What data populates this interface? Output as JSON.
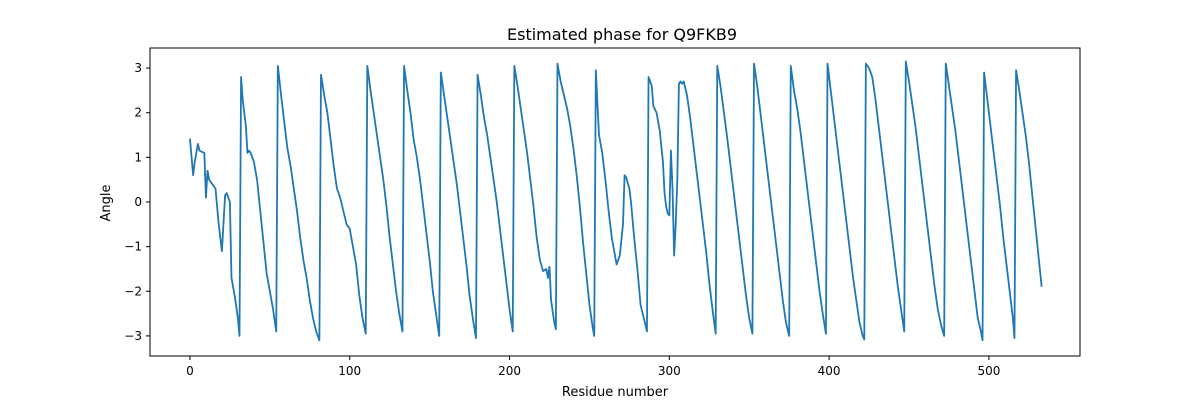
{
  "chart_data": {
    "type": "line",
    "title": "Estimated phase for Q9FKB9",
    "xlabel": "Residue number",
    "ylabel": "Angle",
    "xlim": [
      -25,
      557
    ],
    "ylim": [
      -3.45,
      3.45
    ],
    "xticks": [
      0,
      100,
      200,
      300,
      400,
      500
    ],
    "yticks": [
      -3,
      -2,
      -1,
      0,
      1,
      2,
      3
    ],
    "grid": false,
    "legend": "none",
    "series": [
      {
        "color": "#1f77b4",
        "points": [
          [
            0,
            1.42
          ],
          [
            2,
            0.6
          ],
          [
            3,
            0.9
          ],
          [
            5,
            1.3
          ],
          [
            6,
            1.15
          ],
          [
            9,
            1.1
          ],
          [
            10,
            0.1
          ],
          [
            11,
            0.7
          ],
          [
            12,
            0.5
          ],
          [
            14,
            0.4
          ],
          [
            16,
            0.3
          ],
          [
            18,
            -0.5
          ],
          [
            20,
            -1.1
          ],
          [
            22,
            0.15
          ],
          [
            23,
            0.2
          ],
          [
            25,
            0.0
          ],
          [
            26,
            -1.7
          ],
          [
            28,
            -2.1
          ],
          [
            30,
            -2.6
          ],
          [
            31,
            -3.0
          ],
          [
            32,
            2.8
          ],
          [
            33,
            2.3
          ],
          [
            35,
            1.7
          ],
          [
            36,
            1.1
          ],
          [
            37,
            1.15
          ],
          [
            38,
            1.1
          ],
          [
            40,
            0.9
          ],
          [
            42,
            0.5
          ],
          [
            44,
            -0.2
          ],
          [
            46,
            -0.9
          ],
          [
            48,
            -1.6
          ],
          [
            50,
            -2.0
          ],
          [
            52,
            -2.4
          ],
          [
            54,
            -2.9
          ],
          [
            55,
            3.05
          ],
          [
            57,
            2.4
          ],
          [
            59,
            1.8
          ],
          [
            61,
            1.2
          ],
          [
            63,
            0.8
          ],
          [
            65,
            0.3
          ],
          [
            67,
            -0.2
          ],
          [
            69,
            -0.8
          ],
          [
            71,
            -1.3
          ],
          [
            73,
            -1.7
          ],
          [
            75,
            -2.2
          ],
          [
            77,
            -2.6
          ],
          [
            79,
            -2.9
          ],
          [
            81,
            -3.1
          ],
          [
            82,
            2.85
          ],
          [
            84,
            2.4
          ],
          [
            86,
            2.0
          ],
          [
            88,
            1.4
          ],
          [
            90,
            0.8
          ],
          [
            92,
            0.3
          ],
          [
            94,
            0.1
          ],
          [
            96,
            -0.2
          ],
          [
            98,
            -0.5
          ],
          [
            100,
            -0.6
          ],
          [
            102,
            -1.0
          ],
          [
            104,
            -1.4
          ],
          [
            106,
            -2.1
          ],
          [
            108,
            -2.6
          ],
          [
            110,
            -2.95
          ],
          [
            111,
            3.05
          ],
          [
            113,
            2.5
          ],
          [
            115,
            2.0
          ],
          [
            117,
            1.5
          ],
          [
            119,
            1.0
          ],
          [
            121,
            0.5
          ],
          [
            123,
            -0.1
          ],
          [
            125,
            -0.8
          ],
          [
            127,
            -1.4
          ],
          [
            129,
            -2.0
          ],
          [
            131,
            -2.5
          ],
          [
            133,
            -2.9
          ],
          [
            134,
            3.05
          ],
          [
            136,
            2.5
          ],
          [
            138,
            2.0
          ],
          [
            140,
            1.4
          ],
          [
            142,
            1.0
          ],
          [
            144,
            0.5
          ],
          [
            146,
            -0.1
          ],
          [
            148,
            -0.7
          ],
          [
            150,
            -1.3
          ],
          [
            152,
            -2.0
          ],
          [
            154,
            -2.5
          ],
          [
            156,
            -3.0
          ],
          [
            157,
            2.9
          ],
          [
            159,
            2.4
          ],
          [
            161,
            1.9
          ],
          [
            163,
            1.4
          ],
          [
            165,
            0.9
          ],
          [
            167,
            0.4
          ],
          [
            169,
            -0.2
          ],
          [
            171,
            -0.8
          ],
          [
            173,
            -1.4
          ],
          [
            175,
            -2.1
          ],
          [
            177,
            -2.6
          ],
          [
            179,
            -3.05
          ],
          [
            180,
            2.85
          ],
          [
            182,
            2.4
          ],
          [
            184,
            1.9
          ],
          [
            186,
            1.5
          ],
          [
            188,
            1.0
          ],
          [
            190,
            0.5
          ],
          [
            192,
            0.0
          ],
          [
            194,
            -0.6
          ],
          [
            196,
            -1.2
          ],
          [
            198,
            -1.8
          ],
          [
            200,
            -2.4
          ],
          [
            202,
            -2.9
          ],
          [
            203,
            3.05
          ],
          [
            205,
            2.6
          ],
          [
            207,
            2.1
          ],
          [
            209,
            1.6
          ],
          [
            211,
            1.1
          ],
          [
            213,
            0.5
          ],
          [
            215,
            -0.1
          ],
          [
            217,
            -0.8
          ],
          [
            219,
            -1.3
          ],
          [
            221,
            -1.55
          ],
          [
            223,
            -1.5
          ],
          [
            224,
            -1.7
          ],
          [
            225,
            -1.45
          ],
          [
            226,
            -2.2
          ],
          [
            228,
            -2.7
          ],
          [
            229,
            -2.85
          ],
          [
            230,
            3.1
          ],
          [
            232,
            2.7
          ],
          [
            234,
            2.4
          ],
          [
            236,
            2.1
          ],
          [
            238,
            1.7
          ],
          [
            240,
            1.2
          ],
          [
            242,
            0.6
          ],
          [
            244,
            -0.1
          ],
          [
            246,
            -0.9
          ],
          [
            248,
            -1.6
          ],
          [
            250,
            -2.3
          ],
          [
            252,
            -2.8
          ],
          [
            253,
            -3.0
          ],
          [
            254,
            2.95
          ],
          [
            255,
            2.2
          ],
          [
            256,
            1.5
          ],
          [
            258,
            1.1
          ],
          [
            260,
            0.5
          ],
          [
            262,
            -0.2
          ],
          [
            264,
            -0.8
          ],
          [
            266,
            -1.2
          ],
          [
            267,
            -1.4
          ],
          [
            269,
            -1.2
          ],
          [
            271,
            -0.5
          ],
          [
            272,
            0.6
          ],
          [
            273,
            0.55
          ],
          [
            275,
            0.3
          ],
          [
            276,
            0.0
          ],
          [
            278,
            -0.8
          ],
          [
            280,
            -1.5
          ],
          [
            282,
            -2.3
          ],
          [
            284,
            -2.6
          ],
          [
            286,
            -2.9
          ],
          [
            287,
            2.8
          ],
          [
            289,
            2.6
          ],
          [
            290,
            2.15
          ],
          [
            292,
            2.0
          ],
          [
            294,
            1.6
          ],
          [
            296,
            0.9
          ],
          [
            297,
            0.2
          ],
          [
            298,
            -0.1
          ],
          [
            299,
            -0.25
          ],
          [
            300,
            -0.3
          ],
          [
            301,
            1.15
          ],
          [
            302,
            0.3
          ],
          [
            303,
            -1.2
          ],
          [
            304,
            -0.5
          ],
          [
            305,
            0.5
          ],
          [
            306,
            2.65
          ],
          [
            307,
            2.7
          ],
          [
            308,
            2.65
          ],
          [
            309,
            2.7
          ],
          [
            311,
            2.4
          ],
          [
            313,
            1.9
          ],
          [
            315,
            1.3
          ],
          [
            317,
            0.7
          ],
          [
            319,
            0.1
          ],
          [
            321,
            -0.5
          ],
          [
            323,
            -1.1
          ],
          [
            325,
            -1.8
          ],
          [
            327,
            -2.4
          ],
          [
            329,
            -2.95
          ],
          [
            330,
            3.05
          ],
          [
            332,
            2.6
          ],
          [
            334,
            2.05
          ],
          [
            336,
            1.5
          ],
          [
            338,
            0.9
          ],
          [
            340,
            0.3
          ],
          [
            342,
            -0.3
          ],
          [
            344,
            -0.9
          ],
          [
            346,
            -1.5
          ],
          [
            348,
            -2.1
          ],
          [
            350,
            -2.6
          ],
          [
            352,
            -2.95
          ],
          [
            353,
            3.1
          ],
          [
            355,
            2.6
          ],
          [
            357,
            2.0
          ],
          [
            359,
            1.4
          ],
          [
            361,
            0.8
          ],
          [
            363,
            0.2
          ],
          [
            365,
            -0.4
          ],
          [
            367,
            -1.0
          ],
          [
            369,
            -1.6
          ],
          [
            371,
            -2.2
          ],
          [
            373,
            -2.7
          ],
          [
            375,
            -3.0
          ],
          [
            376,
            3.05
          ],
          [
            378,
            2.5
          ],
          [
            380,
            2.1
          ],
          [
            382,
            1.6
          ],
          [
            384,
            1.0
          ],
          [
            386,
            0.4
          ],
          [
            388,
            -0.2
          ],
          [
            390,
            -0.8
          ],
          [
            392,
            -1.4
          ],
          [
            394,
            -2.0
          ],
          [
            396,
            -2.5
          ],
          [
            398,
            -2.95
          ],
          [
            399,
            3.1
          ],
          [
            401,
            2.5
          ],
          [
            403,
            1.9
          ],
          [
            405,
            1.3
          ],
          [
            407,
            0.7
          ],
          [
            409,
            0.1
          ],
          [
            411,
            -0.5
          ],
          [
            413,
            -1.1
          ],
          [
            415,
            -1.7
          ],
          [
            417,
            -2.2
          ],
          [
            419,
            -2.7
          ],
          [
            421,
            -3.0
          ],
          [
            422,
            -3.08
          ],
          [
            423,
            3.1
          ],
          [
            425,
            3.0
          ],
          [
            427,
            2.8
          ],
          [
            429,
            2.3
          ],
          [
            431,
            1.7
          ],
          [
            433,
            1.1
          ],
          [
            435,
            0.5
          ],
          [
            437,
            -0.1
          ],
          [
            439,
            -0.7
          ],
          [
            441,
            -1.3
          ],
          [
            443,
            -1.9
          ],
          [
            445,
            -2.4
          ],
          [
            447,
            -2.9
          ],
          [
            448,
            3.15
          ],
          [
            450,
            2.7
          ],
          [
            452,
            2.2
          ],
          [
            454,
            1.7
          ],
          [
            456,
            1.1
          ],
          [
            458,
            0.5
          ],
          [
            460,
            -0.1
          ],
          [
            462,
            -0.7
          ],
          [
            464,
            -1.3
          ],
          [
            466,
            -1.9
          ],
          [
            468,
            -2.4
          ],
          [
            470,
            -2.75
          ],
          [
            472,
            -3.0
          ],
          [
            473,
            3.1
          ],
          [
            475,
            2.6
          ],
          [
            477,
            2.1
          ],
          [
            479,
            1.6
          ],
          [
            481,
            1.0
          ],
          [
            483,
            0.4
          ],
          [
            485,
            -0.2
          ],
          [
            487,
            -0.8
          ],
          [
            489,
            -1.4
          ],
          [
            491,
            -2.0
          ],
          [
            493,
            -2.6
          ],
          [
            495,
            -2.9
          ],
          [
            496,
            -3.1
          ],
          [
            497,
            2.9
          ],
          [
            499,
            2.3
          ],
          [
            501,
            1.7
          ],
          [
            503,
            1.1
          ],
          [
            505,
            0.5
          ],
          [
            507,
            -0.1
          ],
          [
            509,
            -0.8
          ],
          [
            511,
            -1.4
          ],
          [
            513,
            -2.0
          ],
          [
            515,
            -2.6
          ],
          [
            516,
            -3.05
          ],
          [
            517,
            2.95
          ],
          [
            519,
            2.5
          ],
          [
            521,
            2.0
          ],
          [
            523,
            1.5
          ],
          [
            525,
            0.9
          ],
          [
            527,
            0.2
          ],
          [
            529,
            -0.5
          ],
          [
            531,
            -1.2
          ],
          [
            533,
            -1.9
          ]
        ]
      }
    ]
  }
}
